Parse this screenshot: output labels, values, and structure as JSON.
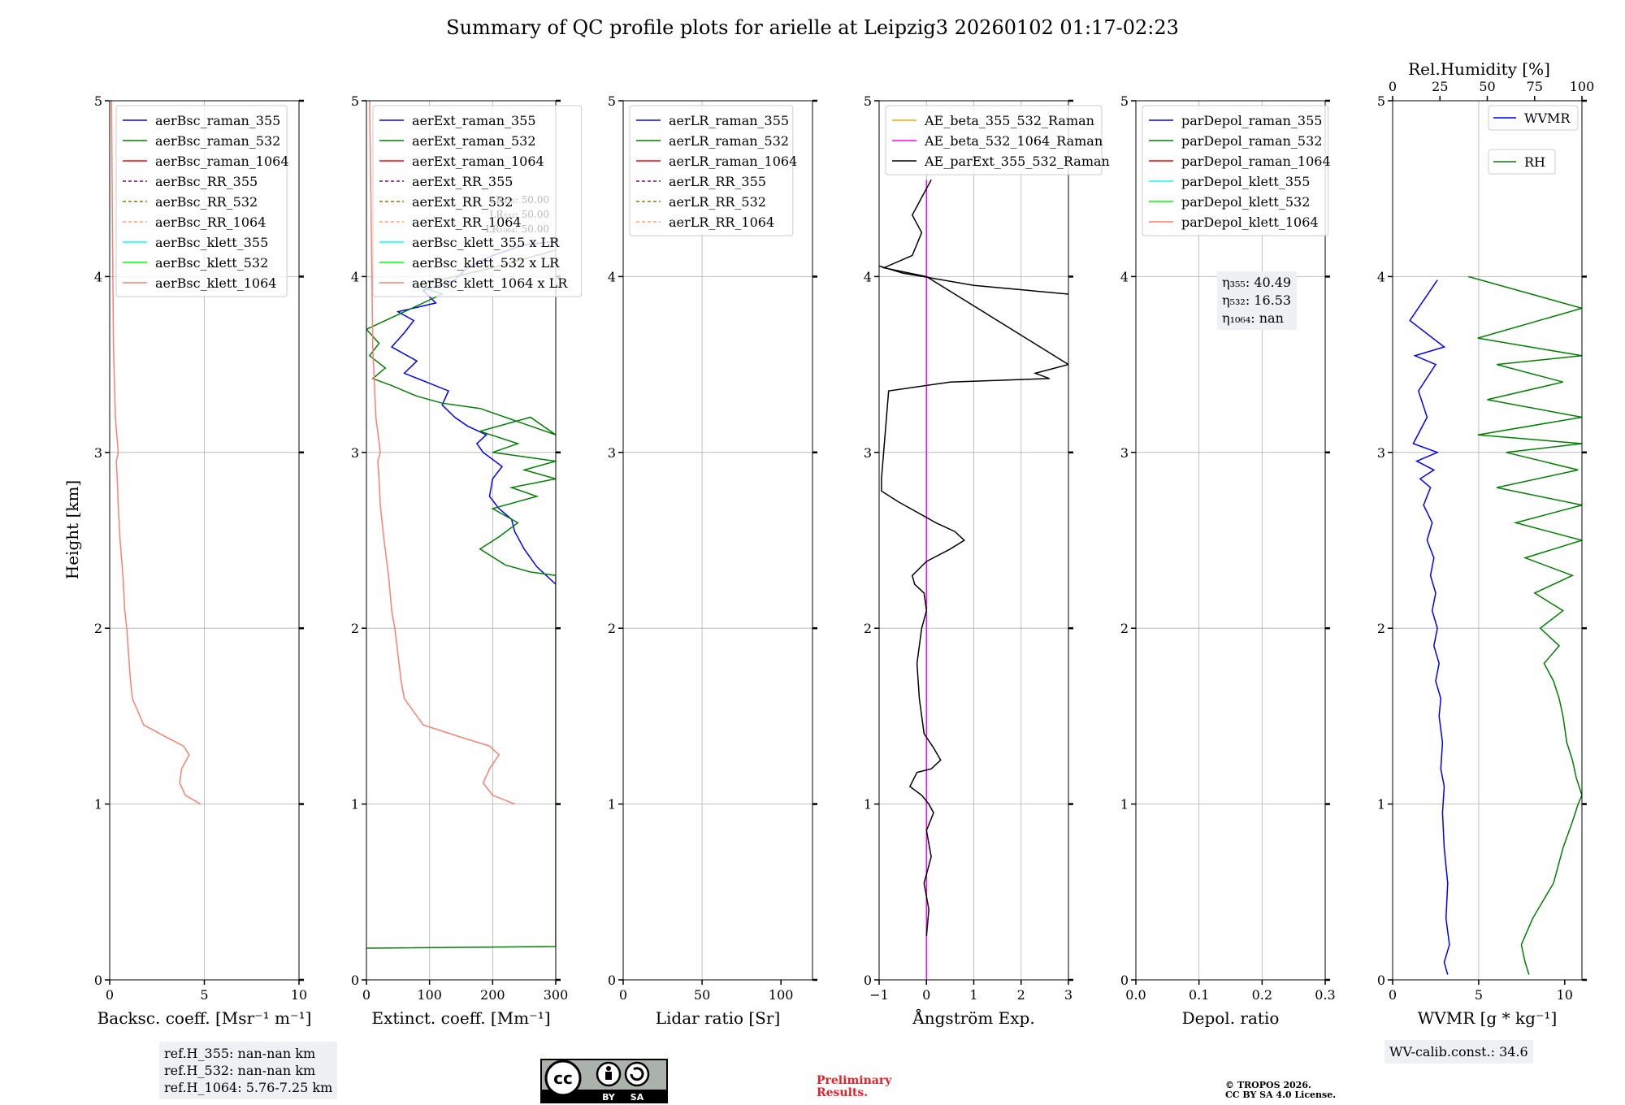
{
  "title": "Summary of QC profile plots for arielle at Leipzig3 20260102 01:17-02:23",
  "ylabel": "Height [km]",
  "colors": {
    "raman_355": "#0000ff",
    "raman_532": "#008000",
    "raman_1064": "#ff0000",
    "rr_355": "#800080",
    "rr_532": "#808000",
    "rr_1064": "#ffa07a",
    "klett_355": "#00ffff",
    "klett_532": "#00ff00",
    "klett_1064": "#fa8072",
    "ae_beta_355_532": "#ffa500",
    "ae_beta_532_1064": "#ff00ff",
    "ae_parext": "#000000",
    "wvmr": "#0000ff",
    "rh": "#008000"
  },
  "chart_data": [
    {
      "id": "backscatter",
      "type": "line",
      "xlabel": "Backsc. coeff. [Msr⁻¹ m⁻¹]",
      "xlim": [
        0,
        10
      ],
      "ylim": [
        0,
        5
      ],
      "xticks": [
        "0",
        "5",
        "10"
      ],
      "xtick_values": [
        0,
        5,
        10
      ],
      "yticks": [
        "0",
        "1",
        "2",
        "3",
        "4",
        "5"
      ],
      "legend": [
        "aerBsc_raman_355",
        "aerBsc_raman_532",
        "aerBsc_raman_1064",
        "aerBsc_RR_355",
        "aerBsc_RR_532",
        "aerBsc_RR_1064",
        "aerBsc_klett_355",
        "aerBsc_klett_532",
        "aerBsc_klett_1064"
      ],
      "legend_styles": [
        "raman_355",
        "raman_532",
        "raman_1064",
        "rr_355",
        "rr_532",
        "rr_1064",
        "klett_355",
        "klett_532",
        "klett_1064"
      ],
      "legend_dashed": [
        false,
        false,
        false,
        true,
        true,
        true,
        false,
        false,
        false
      ],
      "series": [
        {
          "name": "aerBsc_klett_1064",
          "style": "klett_1064",
          "x": [
            4.8,
            4.0,
            3.7,
            3.8,
            4.2,
            3.9,
            3.0,
            1.8,
            1.2,
            1.1,
            1.0,
            0.9,
            0.8,
            0.7,
            0.55,
            0.45,
            0.4,
            0.35,
            0.45,
            0.3,
            0.2,
            0.15,
            0.1
          ],
          "y": [
            1.0,
            1.05,
            1.12,
            1.2,
            1.28,
            1.33,
            1.38,
            1.45,
            1.6,
            1.7,
            1.85,
            2.0,
            2.1,
            2.3,
            2.5,
            2.7,
            2.85,
            2.95,
            3.0,
            3.2,
            3.6,
            4.2,
            5.0
          ]
        }
      ]
    },
    {
      "id": "extinction",
      "type": "line",
      "xlabel": "Extinct. coeff. [Mm⁻¹]",
      "xlim": [
        0,
        300
      ],
      "ylim": [
        0,
        5
      ],
      "xticks": [
        "0",
        "100",
        "200",
        "300"
      ],
      "xtick_values": [
        0,
        100,
        200,
        300
      ],
      "yticks": [
        "0",
        "1",
        "2",
        "3",
        "4",
        "5"
      ],
      "legend": [
        "aerExt_raman_355",
        "aerExt_raman_532",
        "aerExt_raman_1064",
        "aerExt_RR_355",
        "aerExt_RR_532",
        "aerExt_RR_1064",
        "aerBsc_klett_355 x LR",
        "aerBsc_klett_532 x LR",
        "aerBsc_klett_1064 x LR"
      ],
      "legend_styles": [
        "raman_355",
        "raman_532",
        "raman_1064",
        "rr_355",
        "rr_532",
        "rr_1064",
        "klett_355",
        "klett_532",
        "klett_1064"
      ],
      "legend_dashed": [
        false,
        false,
        false,
        true,
        true,
        true,
        false,
        false,
        false
      ],
      "annotation": [
        "LR₃₅₅: 50.00",
        "LR₅₃₂: 50.00",
        "LR₁₀₆₄: 50.00"
      ],
      "series": [
        {
          "name": "aerExt_raman_355",
          "style": "raman_355",
          "x": [
            300,
            270,
            250,
            235,
            230,
            210,
            195,
            200,
            215,
            185,
            175,
            190,
            160,
            140,
            120,
            130,
            95,
            60,
            80,
            40,
            60,
            75,
            50,
            110,
            90,
            140,
            160,
            200,
            250,
            300
          ],
          "y": [
            2.25,
            2.35,
            2.45,
            2.55,
            2.62,
            2.68,
            2.75,
            2.85,
            2.92,
            3.0,
            3.05,
            3.1,
            3.15,
            3.2,
            3.27,
            3.35,
            3.4,
            3.45,
            3.52,
            3.6,
            3.68,
            3.75,
            3.8,
            3.85,
            3.92,
            3.98,
            4.05,
            4.12,
            4.18,
            4.2
          ]
        },
        {
          "name": "aerExt_raman_532",
          "style": "raman_532",
          "x": [
            0,
            300,
            300,
            260,
            220,
            180,
            210,
            240,
            200,
            270,
            230,
            300,
            250,
            300,
            200,
            240,
            180,
            260,
            300,
            180,
            120,
            80,
            40,
            10,
            30,
            5,
            20,
            0,
            60,
            120,
            80,
            200,
            300
          ],
          "y": [
            0.18,
            0.19,
            2.3,
            2.32,
            2.36,
            2.45,
            2.52,
            2.6,
            2.68,
            2.75,
            2.8,
            2.85,
            2.9,
            2.95,
            3.0,
            3.05,
            3.12,
            3.2,
            3.1,
            3.25,
            3.28,
            3.32,
            3.38,
            3.42,
            3.48,
            3.55,
            3.62,
            3.7,
            3.8,
            3.9,
            3.95,
            4.05,
            4.15
          ]
        },
        {
          "name": "aerBsc_klett_1064 x LR",
          "style": "klett_1064",
          "x": [
            235,
            200,
            185,
            195,
            210,
            195,
            150,
            90,
            60,
            55,
            50,
            45,
            40,
            35,
            28,
            22,
            20,
            18,
            22,
            15,
            10,
            8,
            5
          ],
          "y": [
            1.0,
            1.05,
            1.12,
            1.2,
            1.28,
            1.33,
            1.38,
            1.45,
            1.6,
            1.7,
            1.85,
            2.0,
            2.1,
            2.3,
            2.5,
            2.7,
            2.85,
            2.95,
            3.0,
            3.2,
            3.6,
            4.2,
            5.0
          ]
        }
      ]
    },
    {
      "id": "lidar_ratio",
      "type": "line",
      "xlabel": "Lidar ratio [Sr]",
      "xlim": [
        0,
        120
      ],
      "ylim": [
        0,
        5
      ],
      "xticks": [
        "0",
        "50",
        "100"
      ],
      "xtick_values": [
        0,
        50,
        100
      ],
      "yticks": [
        "0",
        "1",
        "2",
        "3",
        "4",
        "5"
      ],
      "legend": [
        "aerLR_raman_355",
        "aerLR_raman_532",
        "aerLR_raman_1064",
        "aerLR_RR_355",
        "aerLR_RR_532",
        "aerLR_RR_1064"
      ],
      "legend_styles": [
        "raman_355",
        "raman_532",
        "raman_1064",
        "rr_355",
        "rr_532",
        "rr_1064"
      ],
      "legend_dashed": [
        false,
        false,
        false,
        true,
        true,
        true
      ],
      "series": []
    },
    {
      "id": "angstrom",
      "type": "line",
      "xlabel": "Ångström Exp.",
      "xlim": [
        -1,
        3
      ],
      "ylim": [
        0,
        5
      ],
      "xticks": [
        "−1",
        "0",
        "1",
        "2",
        "3"
      ],
      "xtick_values": [
        -1,
        0,
        1,
        2,
        3
      ],
      "yticks": [
        "0",
        "1",
        "2",
        "3",
        "4",
        "5"
      ],
      "legend": [
        "AE_beta_355_532_Raman",
        "AE_beta_532_1064_Raman",
        "AE_parExt_355_532_Raman"
      ],
      "legend_styles": [
        "ae_beta_355_532",
        "ae_beta_532_1064",
        "ae_parext"
      ],
      "legend_dashed": [
        false,
        false,
        false
      ],
      "series": [
        {
          "name": "AE_beta_532_1064_Raman",
          "style": "ae_beta_532_1064",
          "x": [
            0,
            0
          ],
          "y": [
            0,
            4.55
          ]
        },
        {
          "name": "AE_parExt_355_532_Raman",
          "style": "ae_parext",
          "x": [
            0.0,
            0.05,
            -0.05,
            0.1,
            0.0,
            0.15,
            0.05,
            -0.1,
            -0.35,
            -0.2,
            0.1,
            0.3,
            0.15,
            -0.05,
            -0.15,
            -0.2,
            -0.1,
            0.0,
            -0.05,
            -0.25,
            -0.3,
            0.0,
            0.5,
            0.8,
            0.6,
            0.2,
            -0.6,
            -0.95,
            -0.95,
            -0.8,
            0.5,
            2.6,
            2.3,
            3.0,
            0.0,
            -0.9,
            -0.3,
            -0.1,
            -0.3,
            -0.1,
            0.1
          ],
          "y": [
            0.25,
            0.4,
            0.55,
            0.7,
            0.85,
            0.95,
            1.0,
            1.05,
            1.1,
            1.18,
            1.2,
            1.25,
            1.32,
            1.4,
            1.6,
            1.8,
            2.0,
            2.1,
            2.2,
            2.25,
            2.3,
            2.38,
            2.45,
            2.5,
            2.55,
            2.6,
            2.72,
            2.78,
            2.85,
            3.35,
            3.4,
            3.42,
            3.45,
            3.5,
            4.0,
            4.05,
            4.12,
            4.25,
            4.35,
            4.45,
            4.55
          ]
        },
        {
          "name": "AE_parExt_355_532_Raman upper",
          "style": "ae_parext",
          "x": [
            -1.0,
            -0.5,
            1.0,
            3.0
          ],
          "y": [
            4.06,
            4.02,
            3.95,
            3.9
          ]
        }
      ]
    },
    {
      "id": "depol",
      "type": "line",
      "xlabel": "Depol. ratio",
      "xlim": [
        0,
        0.3
      ],
      "ylim": [
        0,
        5
      ],
      "xticks": [
        "0.0",
        "0.1",
        "0.2",
        "0.3"
      ],
      "xtick_values": [
        0,
        0.1,
        0.2,
        0.3
      ],
      "yticks": [
        "0",
        "1",
        "2",
        "3",
        "4",
        "5"
      ],
      "legend": [
        "parDepol_raman_355",
        "parDepol_raman_532",
        "parDepol_raman_1064",
        "parDepol_klett_355",
        "parDepol_klett_532",
        "parDepol_klett_1064"
      ],
      "legend_styles": [
        "raman_355",
        "raman_532",
        "raman_1064",
        "klett_355",
        "klett_532",
        "klett_1064"
      ],
      "legend_dashed": [
        false,
        false,
        false,
        false,
        false,
        false
      ],
      "eta": [
        "η₃₅₅: 40.49",
        "η₅₃₂: 16.53",
        "η₁₀₆₄: nan"
      ],
      "series": []
    },
    {
      "id": "wvmr",
      "type": "line",
      "xlabel": "WVMR [g * kg⁻¹]",
      "xlim": [
        0,
        11
      ],
      "ylim": [
        0,
        5
      ],
      "xticks": [
        "0",
        "5",
        "10"
      ],
      "xtick_values": [
        0,
        5,
        10
      ],
      "yticks": [
        "0",
        "1",
        "2",
        "3",
        "4",
        "5"
      ],
      "top_label": "Rel.Humidity [%]",
      "top_xlim": [
        0,
        100
      ],
      "top_ticks": [
        "0",
        "25",
        "50",
        "75",
        "100"
      ],
      "top_tick_values": [
        0,
        25,
        50,
        75,
        100
      ],
      "legend_wvmr": "WVMR",
      "legend_rh": "RH",
      "series": [
        {
          "name": "WVMR",
          "style": "wvmr",
          "axis": "bottom",
          "x": [
            3.2,
            3.0,
            3.3,
            3.1,
            3.2,
            3.0,
            2.9,
            3.0,
            2.8,
            2.9,
            2.7,
            2.8,
            2.5,
            2.7,
            2.4,
            2.6,
            2.3,
            2.5,
            2.2,
            2.4,
            2.0,
            2.3,
            1.8,
            2.2,
            1.6,
            2.4,
            1.4,
            2.6,
            1.2,
            2.0,
            1.5,
            2.5,
            1.3,
            3.0,
            1.0,
            2.6
          ],
          "y": [
            0.03,
            0.1,
            0.2,
            0.35,
            0.55,
            0.75,
            0.95,
            1.1,
            1.2,
            1.35,
            1.5,
            1.6,
            1.7,
            1.8,
            1.9,
            2.0,
            2.1,
            2.2,
            2.3,
            2.4,
            2.5,
            2.6,
            2.7,
            2.8,
            2.85,
            2.9,
            2.95,
            3.0,
            3.05,
            3.2,
            3.35,
            3.5,
            3.55,
            3.6,
            3.75,
            3.98
          ]
        },
        {
          "name": "RH",
          "style": "rh",
          "axis": "top",
          "x": [
            72,
            70,
            68,
            74,
            85,
            90,
            95,
            98,
            100,
            97,
            95,
            92,
            90,
            88,
            85,
            80,
            88,
            78,
            90,
            75,
            95,
            70,
            100,
            65,
            100,
            55,
            98,
            60,
            100,
            45,
            100,
            50,
            90,
            55,
            100,
            45,
            100,
            40
          ],
          "y": [
            0.03,
            0.1,
            0.2,
            0.35,
            0.55,
            0.75,
            0.9,
            1.0,
            1.05,
            1.15,
            1.25,
            1.35,
            1.5,
            1.6,
            1.7,
            1.8,
            1.9,
            2.0,
            2.1,
            2.2,
            2.3,
            2.4,
            2.5,
            2.6,
            2.7,
            2.8,
            2.9,
            3.0,
            3.05,
            3.1,
            3.2,
            3.3,
            3.4,
            3.5,
            3.55,
            3.65,
            3.82,
            4.0
          ]
        }
      ]
    }
  ],
  "info": {
    "ref_h_355": "ref.H_355: nan-nan km",
    "ref_h_532": "ref.H_532: nan-nan km",
    "ref_h_1064": "ref.H_1064: 5.76-7.25 km",
    "wv_calib": "WV-calib.const.: 34.6",
    "prelim_1": "Preliminary",
    "prelim_2": "Results.",
    "copyright_1": "© TROPOS 2026.",
    "copyright_2": "CC BY SA 4.0 License.",
    "cc_label": "cc",
    "cc_by": "BY",
    "cc_sa": "SA"
  }
}
